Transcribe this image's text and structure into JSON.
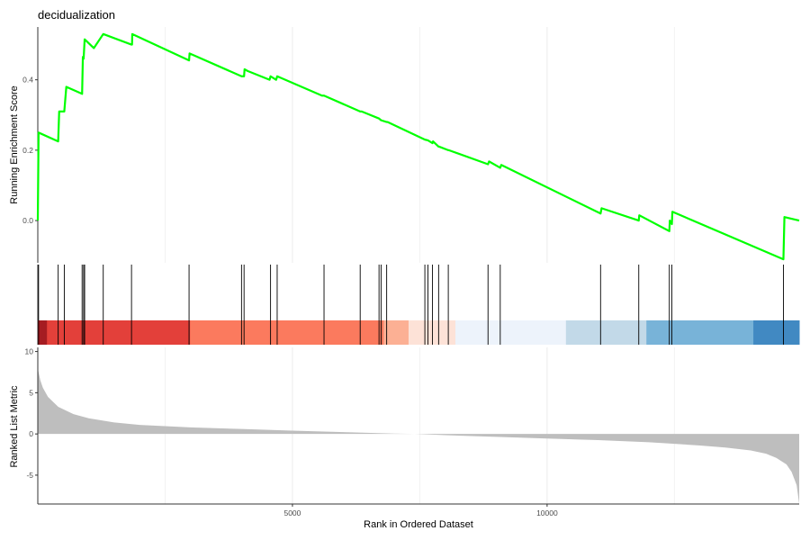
{
  "chart_data": {
    "type": "line",
    "title": "decidualization",
    "xlabel": "Rank in Ordered Dataset",
    "x_ticks": [
      5000,
      10000
    ],
    "x_tick_labels": [
      "5000",
      "10000"
    ],
    "xlim": [
      0,
      14950
    ],
    "grid": "vertical",
    "es_panel": {
      "ylabel": "Running Enrichment Score",
      "ylim": [
        -0.12,
        0.55
      ],
      "y_ticks": [
        0.0,
        0.2,
        0.4
      ],
      "y_tick_labels": [
        "0.0",
        "0.2",
        "0.4"
      ],
      "color": "#00ff00",
      "series": [
        {
          "x": [
            0,
            15,
            400,
            420,
            520,
            560,
            870,
            885,
            900,
            920,
            1100,
            1285,
            1840,
            1850,
            1855,
            2970,
            2980,
            4000,
            4050,
            4060,
            4120,
            4550,
            4570,
            4680,
            4700,
            5580,
            5620,
            6330,
            6360,
            6700,
            6740,
            6850,
            6870,
            7600,
            7660,
            7750,
            7760,
            7870,
            7880,
            8060,
            8070,
            8840,
            8860,
            9080,
            9100,
            11050,
            11070,
            11800,
            11810,
            12400,
            12410,
            12450,
            12460,
            14640,
            14660,
            14950
          ],
          "y": [
            0.0,
            0.25,
            0.225,
            0.31,
            0.31,
            0.38,
            0.36,
            0.465,
            0.46,
            0.515,
            0.49,
            0.53,
            0.5,
            0.5,
            0.53,
            0.455,
            0.475,
            0.41,
            0.41,
            0.43,
            0.425,
            0.4,
            0.41,
            0.4,
            0.41,
            0.355,
            0.355,
            0.31,
            0.31,
            0.29,
            0.285,
            0.28,
            0.28,
            0.23,
            0.228,
            0.22,
            0.225,
            0.21,
            0.21,
            0.2,
            0.2,
            0.16,
            0.168,
            0.15,
            0.158,
            0.02,
            0.035,
            0.0,
            0.015,
            -0.03,
            0.0,
            -0.01,
            0.025,
            -0.11,
            0.01,
            -0.0
          ]
        }
      ]
    },
    "hits_panel": {
      "ranks": [
        15,
        400,
        520,
        870,
        900,
        920,
        1285,
        1840,
        2970,
        4000,
        4050,
        4570,
        4700,
        5620,
        6330,
        6700,
        6740,
        6850,
        7600,
        7660,
        7750,
        7870,
        8060,
        8840,
        9080,
        11050,
        11800,
        12400,
        12450,
        14640
      ]
    },
    "color_band": {
      "segments": [
        {
          "from": 0,
          "to": 180,
          "color": "#a51c22"
        },
        {
          "from": 180,
          "to": 2990,
          "color": "#e3403a"
        },
        {
          "from": 2990,
          "to": 6790,
          "color": "#fb7a5e"
        },
        {
          "from": 6790,
          "to": 7280,
          "color": "#fcb094"
        },
        {
          "from": 7280,
          "to": 8200,
          "color": "#fde2d7"
        },
        {
          "from": 8200,
          "to": 10370,
          "color": "#edf3fb"
        },
        {
          "from": 10370,
          "to": 11950,
          "color": "#c2d9e8"
        },
        {
          "from": 11950,
          "to": 14050,
          "color": "#78b3d8"
        },
        {
          "from": 14050,
          "to": 14950,
          "color": "#4189c2"
        }
      ]
    },
    "metric_panel": {
      "ylabel": "Ranked List Metric",
      "ylim": [
        -8.5,
        10.5
      ],
      "y_ticks": [
        -5,
        0,
        5,
        10
      ],
      "y_tick_labels": [
        "-5",
        "0",
        "5",
        "10"
      ],
      "color": "#bebebe",
      "curve": {
        "x": [
          0,
          50,
          100,
          200,
          400,
          700,
          1000,
          1500,
          2000,
          3000,
          4000,
          5000,
          6000,
          7000,
          7400,
          8000,
          9000,
          10000,
          11000,
          12000,
          12500,
          13000,
          13500,
          14000,
          14300,
          14500,
          14700,
          14800,
          14900,
          14950
        ],
        "y": [
          7.9,
          6.5,
          5.6,
          4.5,
          3.3,
          2.4,
          1.9,
          1.4,
          1.1,
          0.8,
          0.6,
          0.4,
          0.22,
          0.05,
          0.0,
          -0.15,
          -0.35,
          -0.55,
          -0.75,
          -1.0,
          -1.2,
          -1.4,
          -1.65,
          -2.0,
          -2.4,
          -2.9,
          -3.7,
          -4.6,
          -6.2,
          -8.5
        ]
      }
    }
  }
}
